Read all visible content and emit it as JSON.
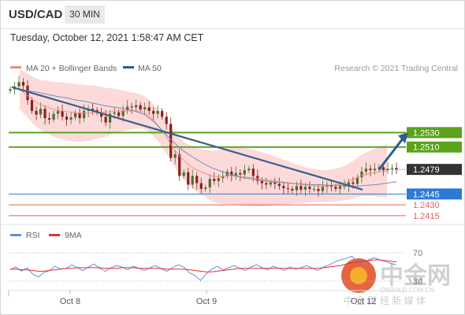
{
  "header": {
    "symbol": "USD/CAD",
    "timeframe": "30 MIN"
  },
  "timestamp": "Tuesday, October 12, 2021 1:58:47 AM CET",
  "copyright": "Research © 2021 Trading Central",
  "watermark": {
    "chinese": "中金网",
    "url": "CNGOLD.COM.CN",
    "tagline": "中 金 财 经 新 媒 体"
  },
  "colors": {
    "ma20": "#f08a8a",
    "bands": "#fbd3d3",
    "ma50": "#2d5c8e",
    "trend": "#3a5f8a",
    "resistance": "#5aa31b",
    "support_blue": "#2d7ad6",
    "support_red": "#e06060",
    "current_bg": "#333333",
    "candle_up": "#4d6e2a",
    "candle_down": "#8b1e1e",
    "rsi": "#6b8cdc",
    "rsi_ma": "#e03030",
    "arrow": "#2d5c8e"
  },
  "chart_data": [
    {
      "type": "line",
      "title": "USD/CAD 30 MIN",
      "legend": [
        {
          "name": "MA 20 + Bollinger Bands",
          "color": "#f08a8a"
        },
        {
          "name": "MA 50",
          "color": "#2d5c8e"
        }
      ],
      "x_ticks": [
        "Oct 8",
        "Oct 9",
        "Oct 12"
      ],
      "ylim": [
        1.2405,
        1.261
      ],
      "levels": [
        {
          "value": 1.253,
          "label": "1.2530",
          "kind": "resistance",
          "color": "#5aa31b"
        },
        {
          "value": 1.251,
          "label": "1.2510",
          "kind": "resistance",
          "color": "#5aa31b"
        },
        {
          "value": 1.2479,
          "label": "1.2479",
          "kind": "current",
          "color": "#333333"
        },
        {
          "value": 1.2445,
          "label": "1.2445",
          "kind": "support",
          "color": "#2d7ad6"
        },
        {
          "value": 1.243,
          "label": "1.2430",
          "kind": "support",
          "color": "#e06060"
        },
        {
          "value": 1.2415,
          "label": "1.2415",
          "kind": "support",
          "color": "#e06060"
        }
      ],
      "close_series": [
        1.259,
        1.2594,
        1.26,
        1.2595,
        1.2575,
        1.256,
        1.2555,
        1.2563,
        1.255,
        1.2548,
        1.2556,
        1.256,
        1.2552,
        1.2548,
        1.2551,
        1.2557,
        1.255,
        1.256,
        1.2563,
        1.2561,
        1.2558,
        1.2552,
        1.2544,
        1.2556,
        1.2558,
        1.2553,
        1.2561,
        1.2566,
        1.2565,
        1.2568,
        1.2562,
        1.2565,
        1.256,
        1.2556,
        1.256,
        1.2552,
        1.2542,
        1.2495,
        1.25,
        1.247,
        1.2475,
        1.2458,
        1.247,
        1.246,
        1.2452,
        1.2454,
        1.2466,
        1.2463,
        1.2467,
        1.247,
        1.2476,
        1.247,
        1.2474,
        1.2472,
        1.2478,
        1.248,
        1.247,
        1.2463,
        1.246,
        1.2458,
        1.2461,
        1.2459,
        1.2456,
        1.2453,
        1.2452,
        1.245,
        1.2456,
        1.2451,
        1.2455,
        1.2452,
        1.2452,
        1.2449,
        1.2455,
        1.2457,
        1.2455,
        1.2452,
        1.2456,
        1.2456,
        1.2461,
        1.2459,
        1.2468,
        1.2476,
        1.248,
        1.2478,
        1.248,
        1.2482,
        1.2478,
        1.248,
        1.2481,
        1.2479
      ],
      "ma20_series": [
        1.259,
        1.2584,
        1.2578,
        1.2572,
        1.2568,
        1.2566,
        1.2563,
        1.2561,
        1.256,
        1.2559,
        1.2558,
        1.2557,
        1.2557,
        1.2557,
        1.2558,
        1.2558,
        1.2558,
        1.2559,
        1.256,
        1.256,
        1.256,
        1.256,
        1.256,
        1.2559,
        1.2555,
        1.2548,
        1.254,
        1.253,
        1.2519,
        1.2507,
        1.2498,
        1.249,
        1.2484,
        1.2479,
        1.2476,
        1.2473,
        1.247,
        1.2469,
        1.2469,
        1.247,
        1.247,
        1.2469,
        1.2469,
        1.2468,
        1.2467,
        1.2466,
        1.2465,
        1.2464,
        1.2463,
        1.2462,
        1.2461,
        1.246,
        1.2459,
        1.2458,
        1.2457,
        1.2457,
        1.2456,
        1.2456,
        1.2456,
        1.2457,
        1.2458,
        1.246,
        1.2463,
        1.2466,
        1.247,
        1.2472,
        1.2474,
        1.2475,
        1.2476,
        1.2477
      ],
      "ma50_series": [
        1.259,
        1.2588,
        1.2586,
        1.2583,
        1.258,
        1.2578,
        1.2575,
        1.2573,
        1.257,
        1.2567,
        1.2565,
        1.2563,
        1.256,
        1.2555,
        1.2545,
        1.2531,
        1.2517,
        1.2505,
        1.2496,
        1.2488,
        1.2481,
        1.2476,
        1.2472,
        1.2468,
        1.2466,
        1.2464,
        1.2462,
        1.2461,
        1.246,
        1.2459,
        1.2458,
        1.2458,
        1.2457,
        1.2457,
        1.2456,
        1.2456,
        1.2457,
        1.2458,
        1.246,
        1.2462
      ],
      "trendline": [
        {
          "x": 0.0,
          "y": 1.2593
        },
        {
          "x": 1.0,
          "y": 1.2451
        }
      ],
      "projection": [
        {
          "x": 0.0,
          "y": 1.2479
        },
        {
          "x": 1.0,
          "y": 1.2527
        }
      ]
    },
    {
      "type": "line",
      "title": "RSI",
      "legend": [
        {
          "name": "RSI",
          "color": "#6b8cdc"
        },
        {
          "name": "9MA",
          "color": "#e03030"
        }
      ],
      "ylim": [
        20,
        80
      ],
      "reference_lines": [
        70,
        30
      ],
      "tick_labels": [
        "70",
        "30"
      ],
      "rsi_series": [
        46,
        50,
        44,
        49,
        40,
        36,
        42,
        45,
        51,
        47,
        48,
        53,
        49,
        45,
        50,
        54,
        48,
        44,
        49,
        52,
        50,
        46,
        51,
        48,
        45,
        49,
        52,
        47,
        44,
        49,
        53,
        50,
        42,
        38,
        31,
        40,
        47,
        51,
        46,
        49,
        52,
        48,
        45,
        50,
        53,
        49,
        46,
        51,
        48,
        45,
        50,
        47,
        49,
        52,
        48,
        45,
        50,
        53,
        57,
        60,
        62,
        65,
        58,
        55,
        60,
        63,
        60,
        58,
        55,
        53
      ],
      "ma9_series": [
        47,
        47,
        46,
        46,
        45,
        44,
        44,
        45,
        46,
        47,
        48,
        48,
        49,
        49,
        49,
        49,
        49,
        48,
        48,
        48,
        49,
        49,
        49,
        48,
        48,
        48,
        48,
        48,
        47,
        47,
        47,
        47,
        46,
        45,
        44,
        43,
        43,
        44,
        45,
        46,
        47,
        48,
        48,
        48,
        48,
        48,
        48,
        48,
        48,
        48,
        48,
        48,
        48,
        48,
        48,
        48,
        49,
        50,
        51,
        52,
        54,
        56,
        57,
        58,
        59,
        60,
        60,
        59,
        58,
        57
      ]
    }
  ]
}
